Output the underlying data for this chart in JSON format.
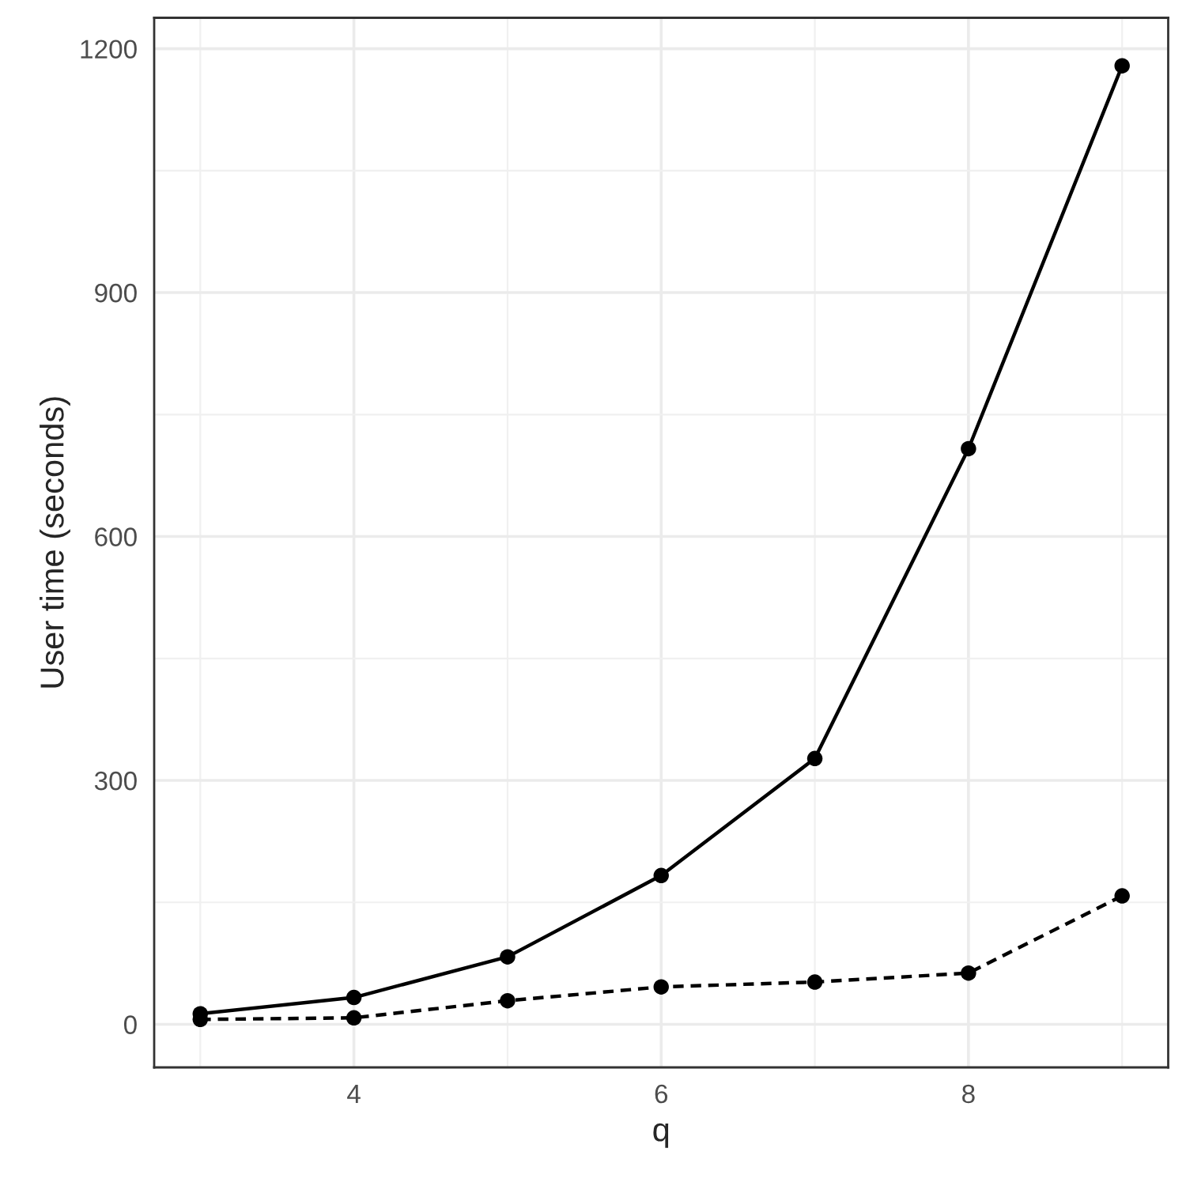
{
  "chart_data": {
    "type": "line",
    "xlabel": "q",
    "ylabel": "User time (seconds)",
    "x": [
      3,
      4,
      5,
      6,
      7,
      8,
      9
    ],
    "series": [
      {
        "color": "#000000",
        "line_style": "solid",
        "values": [
          13,
          33,
          83,
          183,
          327,
          708,
          1179
        ]
      },
      {
        "color": "#000000",
        "line_style": "dashed",
        "values": [
          6,
          8,
          29,
          46,
          52,
          63,
          158
        ]
      }
    ],
    "marker": "circle",
    "grid": true,
    "xlim": [
      2.7,
      9.3
    ],
    "xticks": [
      4,
      6,
      8
    ],
    "ylim": [
      -53,
      1238
    ],
    "yticks": [
      0,
      300,
      600,
      900,
      1200
    ]
  }
}
